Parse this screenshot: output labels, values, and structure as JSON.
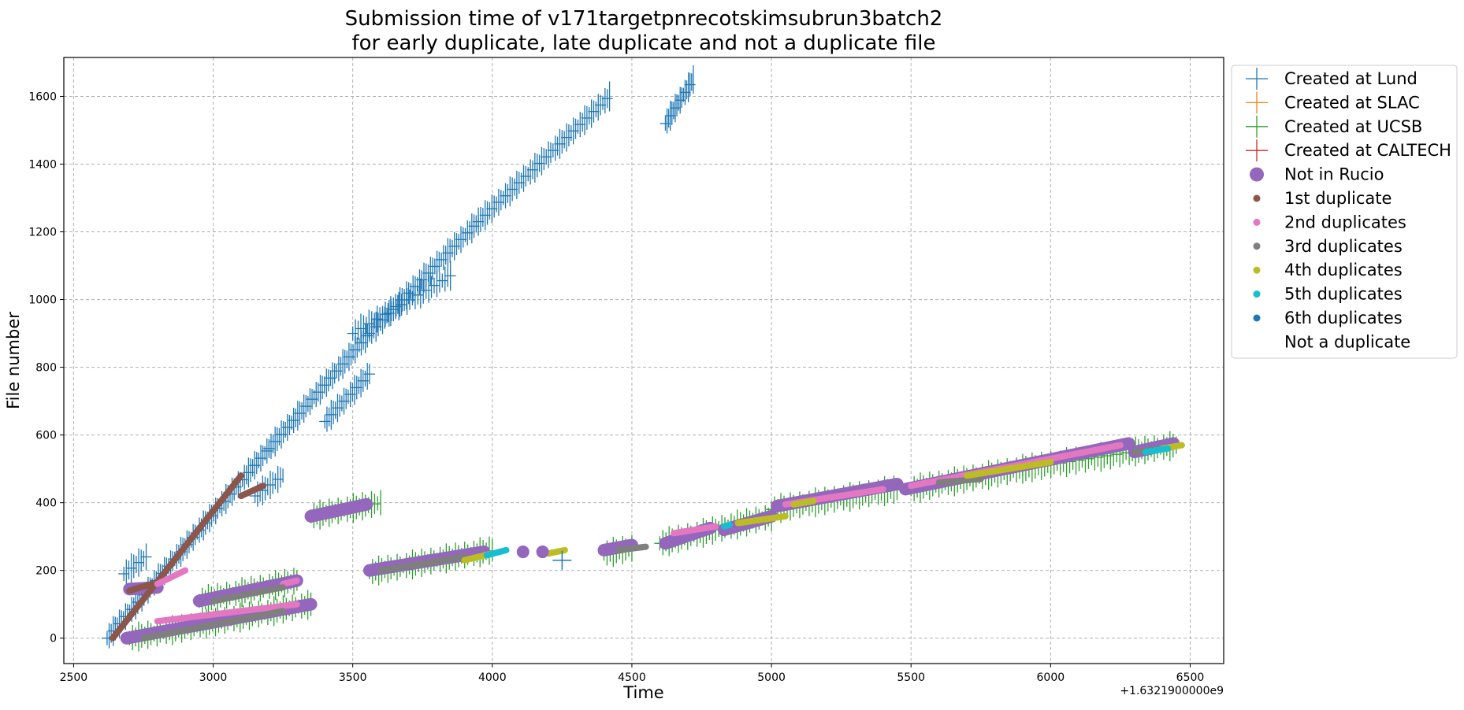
{
  "chart_data": {
    "type": "scatter",
    "title_lines": [
      "Submission time of v171targetpnrecotskimsubrun3batch2",
      "for early duplicate, late duplicate and not a duplicate file"
    ],
    "xlabel": "Time",
    "ylabel": "File number",
    "x_offset_label": "+1.6321900000e9",
    "xlim": [
      2465,
      6620
    ],
    "ylim": [
      -75,
      1715
    ],
    "x_ticks": [
      2500,
      3000,
      3500,
      4000,
      4500,
      5000,
      5500,
      6000,
      6500
    ],
    "y_ticks": [
      0,
      200,
      400,
      600,
      800,
      1000,
      1200,
      1400,
      1600
    ],
    "grid": true,
    "legend_position": "outside-right-top",
    "legend": [
      {
        "label": "Created at Lund",
        "marker": "plus",
        "color": "#1f77b4"
      },
      {
        "label": "Created at SLAC",
        "marker": "plus",
        "color": "#ff7f0e"
      },
      {
        "label": "Created at UCSB",
        "marker": "plus",
        "color": "#2ca02c"
      },
      {
        "label": "Created at CALTECH",
        "marker": "plus",
        "color": "#d62728"
      },
      {
        "label": "Not in Rucio",
        "marker": "big-dot",
        "color": "#9467bd"
      },
      {
        "label": "1st duplicate",
        "marker": "dot",
        "color": "#8c564b"
      },
      {
        "label": "2nd duplicates",
        "marker": "dot",
        "color": "#e377c2"
      },
      {
        "label": "3rd duplicates",
        "marker": "dot",
        "color": "#7f7f7f"
      },
      {
        "label": "4th duplicates",
        "marker": "dot",
        "color": "#bcbd22"
      },
      {
        "label": "5th duplicates",
        "marker": "dot",
        "color": "#17becf"
      },
      {
        "label": "6th duplicates",
        "marker": "dot",
        "color": "#1f77b4"
      },
      {
        "label": "Not a duplicate",
        "marker": "none",
        "color": "#ffffff"
      }
    ],
    "series": [
      {
        "legend_index": 0,
        "color": "#1f77b4",
        "segments": [
          {
            "x": [
              2620,
              3200
            ],
            "y": [
              0,
              560
            ]
          },
          {
            "x": [
              3200,
              3560
            ],
            "y": [
              560,
              900
            ]
          },
          {
            "x": [
              3560,
              3950
            ],
            "y": [
              900,
              1230
            ]
          },
          {
            "x": [
              3950,
              4420
            ],
            "y": [
              1230,
              1600
            ]
          },
          {
            "x": [
              3400,
              3560
            ],
            "y": [
              640,
              780
            ]
          },
          {
            "x": [
              3500,
              3850
            ],
            "y": [
              900,
              1070
            ]
          },
          {
            "x": [
              4620,
              4720
            ],
            "y": [
              1520,
              1650
            ]
          },
          {
            "x": [
              2680,
              2760
            ],
            "y": [
              190,
              240
            ]
          },
          {
            "x": [
              3150,
              3250
            ],
            "y": [
              420,
              480
            ]
          }
        ]
      },
      {
        "legend_index": 2,
        "color": "#2ca02c",
        "segments": [
          {
            "x": [
              2700,
              3350
            ],
            "y": [
              0,
              100
            ]
          },
          {
            "x": [
              2950,
              3300
            ],
            "y": [
              110,
              170
            ]
          },
          {
            "x": [
              3350,
              3600
            ],
            "y": [
              360,
              400
            ]
          },
          {
            "x": [
              3560,
              4000
            ],
            "y": [
              195,
              260
            ]
          },
          {
            "x": [
              4400,
              4500
            ],
            "y": [
              250,
              265
            ]
          },
          {
            "x": [
              4600,
              5000
            ],
            "y": [
              280,
              360
            ]
          },
          {
            "x": [
              5000,
              5450
            ],
            "y": [
              380,
              440
            ]
          },
          {
            "x": [
              5500,
              5900
            ],
            "y": [
              440,
              500
            ]
          },
          {
            "x": [
              5900,
              6450
            ],
            "y": [
              500,
              570
            ]
          }
        ]
      },
      {
        "legend_index": 4,
        "color": "#9467bd",
        "segments": [
          {
            "x": [
              2690,
              3350
            ],
            "y": [
              0,
              100
            ]
          },
          {
            "x": [
              2950,
              3300
            ],
            "y": [
              110,
              170
            ]
          },
          {
            "x": [
              2700,
              2800
            ],
            "y": [
              145,
              150
            ]
          },
          {
            "x": [
              3350,
              3550
            ],
            "y": [
              360,
              395
            ]
          },
          {
            "x": [
              3560,
              3970
            ],
            "y": [
              200,
              255
            ]
          },
          {
            "x": [
              4400,
              4500
            ],
            "y": [
              260,
              275
            ]
          },
          {
            "x": [
              4620,
              4780
            ],
            "y": [
              280,
              325
            ]
          },
          {
            "x": [
              4830,
              5000
            ],
            "y": [
              320,
              360
            ]
          },
          {
            "x": [
              5020,
              5450
            ],
            "y": [
              390,
              455
            ]
          },
          {
            "x": [
              5480,
              6280
            ],
            "y": [
              440,
              575
            ]
          },
          {
            "x": [
              6300,
              6440
            ],
            "y": [
              550,
              575
            ]
          }
        ]
      },
      {
        "legend_index": 5,
        "color": "#8c564b",
        "segments": [
          {
            "x": [
              2640,
              3100
            ],
            "y": [
              0,
              480
            ]
          },
          {
            "x": [
              2700,
              2780
            ],
            "y": [
              140,
              160
            ]
          },
          {
            "x": [
              3100,
              3180
            ],
            "y": [
              420,
              450
            ]
          }
        ]
      },
      {
        "legend_index": 6,
        "color": "#e377c2",
        "segments": [
          {
            "x": [
              2800,
              2900
            ],
            "y": [
              160,
              200
            ]
          },
          {
            "x": [
              2800,
              3300
            ],
            "y": [
              50,
              100
            ]
          },
          {
            "x": [
              3250,
              3300
            ],
            "y": [
              160,
              170
            ]
          },
          {
            "x": [
              4650,
              4800
            ],
            "y": [
              310,
              330
            ]
          },
          {
            "x": [
              5050,
              5400
            ],
            "y": [
              395,
              440
            ]
          },
          {
            "x": [
              5500,
              6250
            ],
            "y": [
              450,
              570
            ]
          }
        ]
      },
      {
        "legend_index": 7,
        "color": "#7f7f7f",
        "segments": [
          {
            "x": [
              2750,
              3250
            ],
            "y": [
              0,
              80
            ]
          },
          {
            "x": [
              3000,
              3250
            ],
            "y": [
              110,
              150
            ]
          },
          {
            "x": [
              3600,
              3900
            ],
            "y": [
              200,
              240
            ]
          },
          {
            "x": [
              4450,
              4550
            ],
            "y": [
              260,
              270
            ]
          },
          {
            "x": [
              5600,
              5750
            ],
            "y": [
              460,
              470
            ]
          },
          {
            "x": [
              6300,
              6400
            ],
            "y": [
              550,
              560
            ]
          }
        ]
      },
      {
        "legend_index": 8,
        "color": "#bcbd22",
        "segments": [
          {
            "x": [
              3900,
              4000
            ],
            "y": [
              230,
              250
            ]
          },
          {
            "x": [
              4200,
              4260
            ],
            "y": [
              250,
              260
            ]
          },
          {
            "x": [
              4880,
              5050
            ],
            "y": [
              340,
              360
            ]
          },
          {
            "x": [
              5080,
              5150
            ],
            "y": [
              395,
              405
            ]
          },
          {
            "x": [
              5700,
              6000
            ],
            "y": [
              480,
              520
            ]
          },
          {
            "x": [
              6400,
              6470
            ],
            "y": [
              560,
              570
            ]
          }
        ]
      },
      {
        "legend_index": 9,
        "color": "#17becf",
        "segments": [
          {
            "x": [
              3980,
              4050
            ],
            "y": [
              245,
              260
            ]
          },
          {
            "x": [
              4830,
              4850
            ],
            "y": [
              330,
              335
            ]
          },
          {
            "x": [
              6340,
              6420
            ],
            "y": [
              550,
              560
            ]
          }
        ]
      }
    ],
    "points": [
      {
        "legend_index": 4,
        "x": 4110,
        "y": 255
      },
      {
        "legend_index": 4,
        "x": 4180,
        "y": 255
      },
      {
        "legend_index": 0,
        "x": 4250,
        "y": 230
      }
    ]
  }
}
